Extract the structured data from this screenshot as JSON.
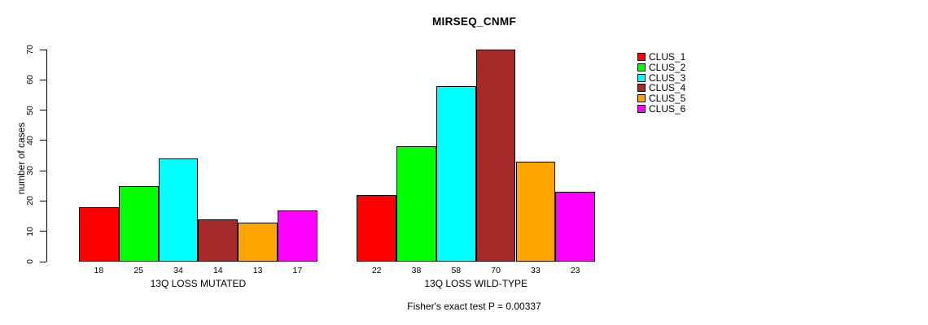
{
  "title": "MIRSEQ_CNMF",
  "footer": "Fisher's exact test P = 0.00337",
  "chart_data": {
    "type": "bar",
    "title": "MIRSEQ_CNMF",
    "xlabel": "",
    "ylabel": "number of cases",
    "ylim": [
      0,
      70
    ],
    "yticks": [
      0,
      10,
      20,
      30,
      40,
      50,
      60,
      70
    ],
    "grid": false,
    "legend_position": "top-right-outside-bars",
    "bar_border_color": "#000000",
    "show_value_labels": true,
    "categories": [
      "13Q LOSS MUTATED",
      "13Q LOSS WILD-TYPE"
    ],
    "series": [
      {
        "name": "CLUS_1",
        "color": "#ff0000",
        "values": [
          18,
          22
        ]
      },
      {
        "name": "CLUS_2",
        "color": "#00ff00",
        "values": [
          25,
          38
        ]
      },
      {
        "name": "CLUS_3",
        "color": "#00ffff",
        "values": [
          34,
          58
        ]
      },
      {
        "name": "CLUS_4",
        "color": "#a52a2a",
        "values": [
          14,
          70
        ]
      },
      {
        "name": "CLUS_5",
        "color": "#ffa500",
        "values": [
          13,
          33
        ]
      },
      {
        "name": "CLUS_6",
        "color": "#ff00ff",
        "values": [
          17,
          23
        ]
      }
    ],
    "annotation": "Fisher's exact test P = 0.00337"
  }
}
